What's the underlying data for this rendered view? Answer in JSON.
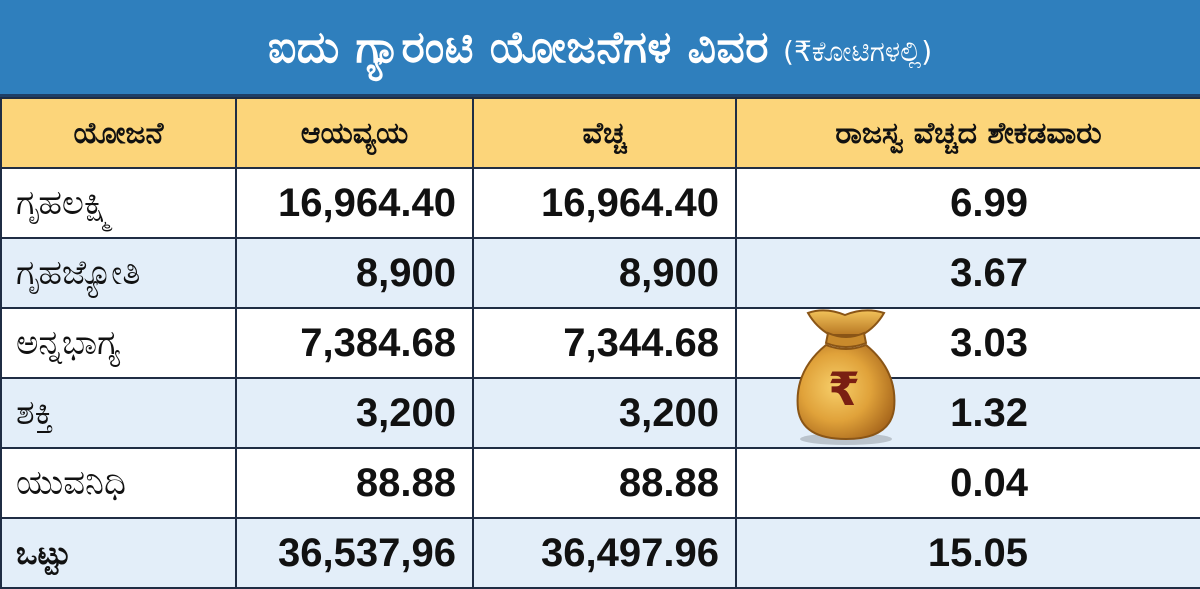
{
  "title": {
    "main": "ಐದು ಗ್ಯಾರಂಟಿ ಯೋಜನೆಗಳ ವಿವರ",
    "unit": "(₹ಕೋಟಿಗಳಲ್ಲಿ)"
  },
  "table": {
    "headers": [
      "ಯೋಜನೆ",
      "ಆಯವ್ಯಯ",
      "ವೆಚ್ಚ",
      "ರಾಜಸ್ವ ವೆಚ್ಚದ ಶೇಕಡವಾರು"
    ],
    "rows": [
      {
        "name": "ಗೃಹಲಕ್ಷ್ಮಿ",
        "budget": "16,964.40",
        "expenditure": "16,964.40",
        "share": "6.99"
      },
      {
        "name": "ಗೃಹಜ್ಯೋತಿ",
        "budget": "8,900",
        "expenditure": "8,900",
        "share": "3.67"
      },
      {
        "name": "ಅನ್ನಭಾಗ್ಯ",
        "budget": "7,384.68",
        "expenditure": "7,344.68",
        "share": "3.03"
      },
      {
        "name": "ಶಕ್ತಿ",
        "budget": "3,200",
        "expenditure": "3,200",
        "share": "1.32"
      },
      {
        "name": "ಯುವನಿಧಿ",
        "budget": "88.88",
        "expenditure": "88.88",
        "share": "0.04"
      }
    ],
    "total": {
      "name": "ಒಟ್ಟು",
      "budget": "36,537,96",
      "expenditure": "36,497.96",
      "share": "15.05"
    }
  },
  "bag_symbol": "₹",
  "colors": {
    "title_bg": "#2f7fbd",
    "header_bg": "#fcd57a",
    "row_alt_bg": "#e3eef9",
    "border": "#1f2d44",
    "bag_gold": "#e0a23a"
  },
  "icons": {
    "illustration": "rupee-money-bag-icon"
  }
}
